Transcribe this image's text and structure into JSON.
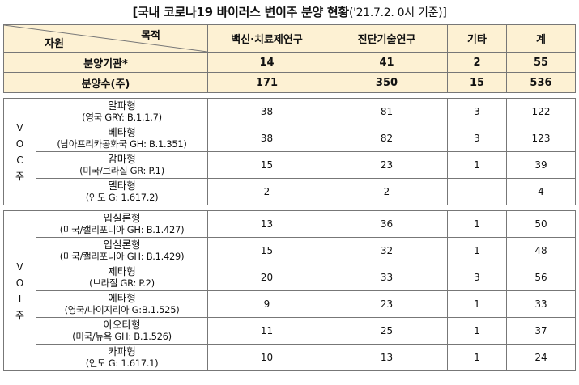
{
  "title": {
    "main": "[국내 코로나19 바이러스 변이주 분양 현황",
    "sub": "('21.7.2. 0시 기준)]"
  },
  "header": {
    "purpose_label": "목적",
    "resource_label": "자원",
    "columns": [
      "백신·치료제연구",
      "진단기술연구",
      "기타",
      "계"
    ]
  },
  "summary": [
    {
      "label": "분양기관*",
      "values": [
        "14",
        "41",
        "2",
        "55"
      ]
    },
    {
      "label": "분양수(주)",
      "values": [
        "171",
        "350",
        "15",
        "536"
      ]
    }
  ],
  "groups": [
    {
      "label_chars": [
        "V",
        "O",
        "C",
        "주"
      ],
      "rows": [
        {
          "name": "알파형",
          "variant": "(영국 GRY: B.1.1.7)",
          "values": [
            "38",
            "81",
            "3",
            "122"
          ]
        },
        {
          "name": "베타형",
          "variant": "(남아프리카공화국 GH: B.1.351)",
          "values": [
            "38",
            "82",
            "3",
            "123"
          ]
        },
        {
          "name": "감마형",
          "variant": "(미국/브라질 GR: P.1)",
          "values": [
            "15",
            "23",
            "1",
            "39"
          ]
        },
        {
          "name": "델타형",
          "variant": "(인도 G: 1.617.2)",
          "values": [
            "2",
            "2",
            "-",
            "4"
          ]
        }
      ]
    },
    {
      "label_chars": [
        "V",
        "O",
        "I",
        "주"
      ],
      "rows": [
        {
          "name": "입실론형",
          "variant": "(미국/캘리포니아 GH: B.1.427)",
          "values": [
            "13",
            "36",
            "1",
            "50"
          ]
        },
        {
          "name": "입실론형",
          "variant": "(미국/캘리포니아 GH: B.1.429)",
          "values": [
            "15",
            "32",
            "1",
            "48"
          ]
        },
        {
          "name": "제타형",
          "variant": "(브라질 GR: P.2)",
          "values": [
            "20",
            "33",
            "3",
            "56"
          ]
        },
        {
          "name": "에타형",
          "variant": "(영국/나이지리아 G:B.1.525)",
          "values": [
            "9",
            "23",
            "1",
            "33"
          ]
        },
        {
          "name": "아오타형",
          "variant": "(미국/뉴욕 GH: B.1.526)",
          "values": [
            "11",
            "25",
            "1",
            "37"
          ]
        },
        {
          "name": "카파형",
          "variant": "(인도 G: 1.617.1)",
          "values": [
            "10",
            "13",
            "1",
            "24"
          ]
        }
      ]
    }
  ]
}
